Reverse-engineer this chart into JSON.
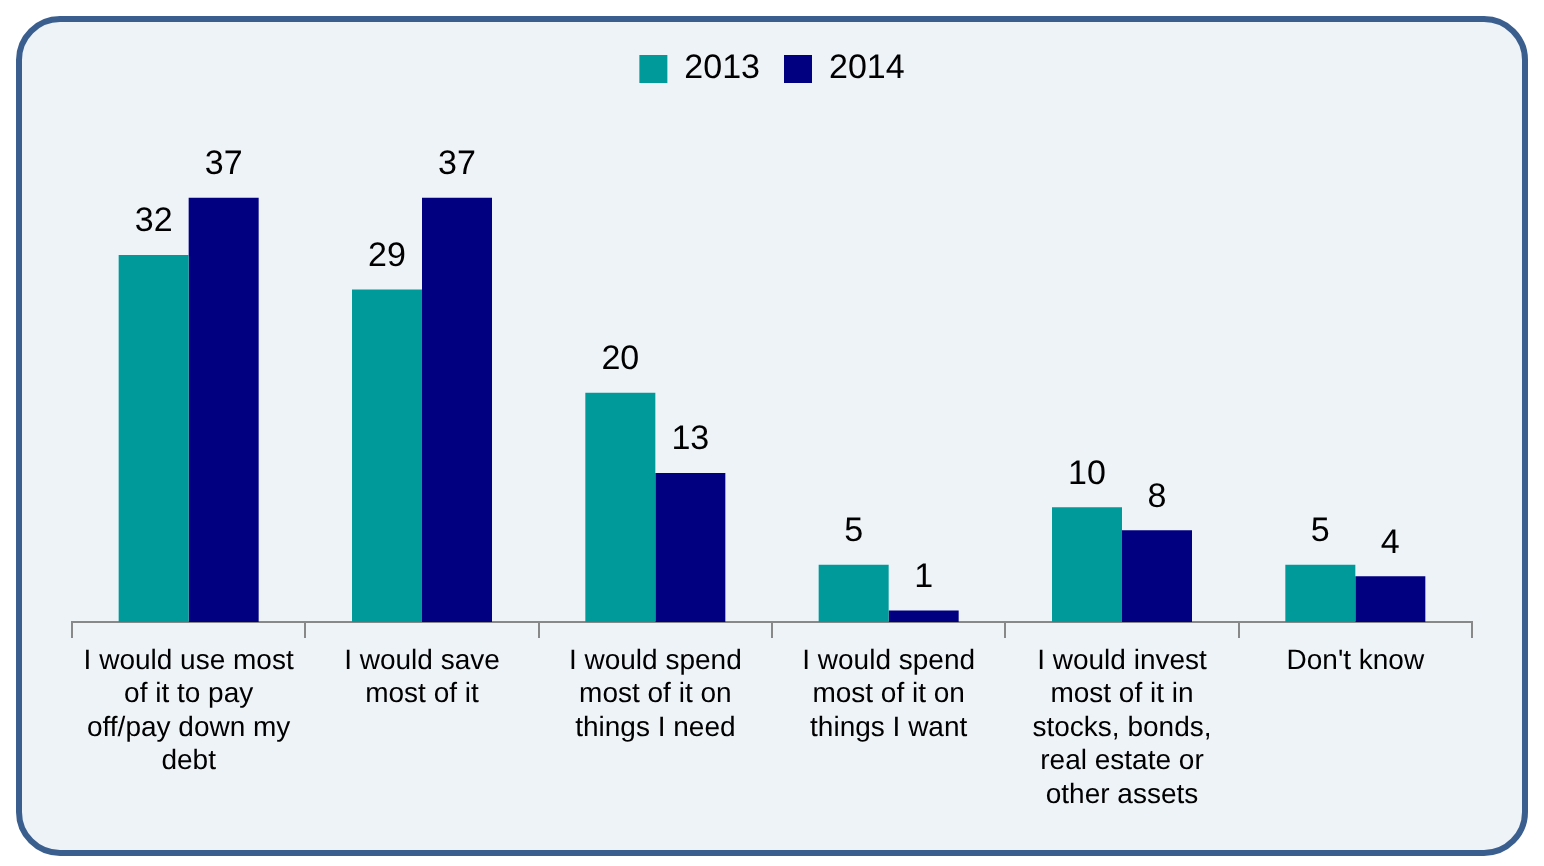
{
  "chart_data": {
    "type": "bar",
    "categories": [
      "I would use most of it to pay off/pay down my debt",
      "I would save most of it",
      "I would spend most of it on things I need",
      "I would spend most of it on things I want",
      "I would invest most of it in stocks, bonds, real estate or other assets",
      "Don't know"
    ],
    "series": [
      {
        "name": "2013",
        "color": "#009a9a",
        "values": [
          32,
          29,
          20,
          5,
          10,
          5
        ]
      },
      {
        "name": "2014",
        "color": "#000080",
        "values": [
          37,
          37,
          13,
          1,
          8,
          4
        ]
      }
    ],
    "data_labels": true,
    "legend": "top",
    "grid": false,
    "tick_labels": "x"
  }
}
